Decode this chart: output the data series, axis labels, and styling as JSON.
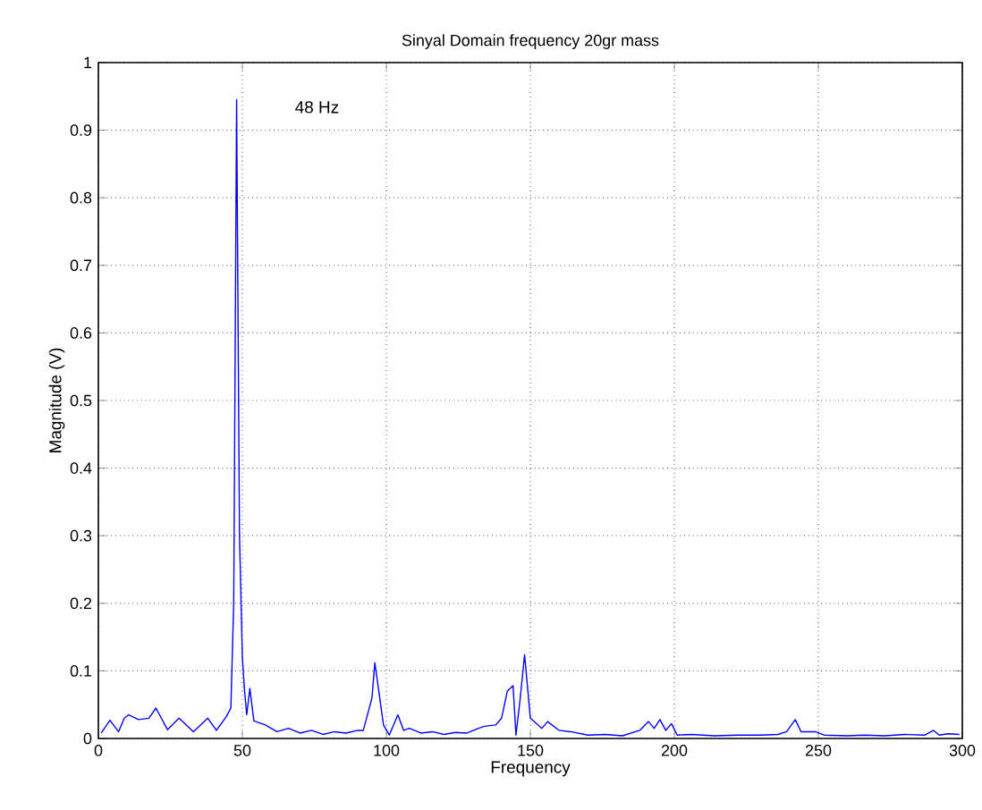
{
  "chart_data": {
    "type": "line",
    "title": "Sinyal Domain frequency 20gr mass",
    "xlabel": "Frequency",
    "ylabel": "Magnitude (V)",
    "annotations": [
      "48 Hz"
    ],
    "xlim": [
      0,
      300
    ],
    "ylim": [
      0,
      1
    ],
    "xticks": [
      0,
      50,
      100,
      150,
      200,
      250,
      300
    ],
    "yticks": [
      0,
      0.1,
      0.2,
      0.3,
      0.4,
      0.5,
      0.6,
      0.7,
      0.8,
      0.9,
      1
    ],
    "grid": true,
    "series": [
      {
        "color": "#0000ff",
        "x": [
          1,
          4,
          7,
          9,
          10.5,
          14,
          17.5,
          20,
          24,
          28,
          33,
          38,
          41,
          44.5,
          46,
          47,
          48,
          49,
          50,
          50.7,
          51.5,
          52.6,
          54,
          58,
          62,
          66,
          70,
          74,
          78,
          82,
          86,
          90,
          92,
          95,
          96,
          99,
          101,
          104,
          106,
          108,
          112,
          116,
          120,
          124,
          128,
          132,
          134,
          138,
          140,
          142,
          144,
          145,
          146.5,
          148,
          150,
          154,
          156,
          160,
          164,
          170,
          176,
          182,
          188,
          191,
          193,
          195,
          197,
          199,
          201,
          206,
          214,
          222,
          230,
          236,
          239,
          242,
          244,
          249,
          252,
          260,
          266,
          273,
          280,
          287,
          290,
          292,
          295,
          299
        ],
        "values": [
          0.008,
          0.027,
          0.01,
          0.03,
          0.035,
          0.028,
          0.03,
          0.045,
          0.013,
          0.03,
          0.01,
          0.03,
          0.012,
          0.033,
          0.045,
          0.2,
          0.945,
          0.3,
          0.12,
          0.074,
          0.035,
          0.074,
          0.026,
          0.02,
          0.01,
          0.015,
          0.008,
          0.012,
          0.006,
          0.01,
          0.008,
          0.012,
          0.012,
          0.06,
          0.112,
          0.02,
          0.005,
          0.035,
          0.012,
          0.015,
          0.008,
          0.01,
          0.006,
          0.009,
          0.008,
          0.015,
          0.018,
          0.02,
          0.03,
          0.07,
          0.078,
          0.005,
          0.06,
          0.124,
          0.03,
          0.015,
          0.025,
          0.012,
          0.01,
          0.005,
          0.006,
          0.004,
          0.012,
          0.025,
          0.015,
          0.028,
          0.012,
          0.022,
          0.005,
          0.006,
          0.004,
          0.005,
          0.005,
          0.006,
          0.01,
          0.028,
          0.01,
          0.01,
          0.005,
          0.004,
          0.005,
          0.004,
          0.006,
          0.005,
          0.012,
          0.005,
          0.007,
          0.006
        ]
      }
    ]
  }
}
